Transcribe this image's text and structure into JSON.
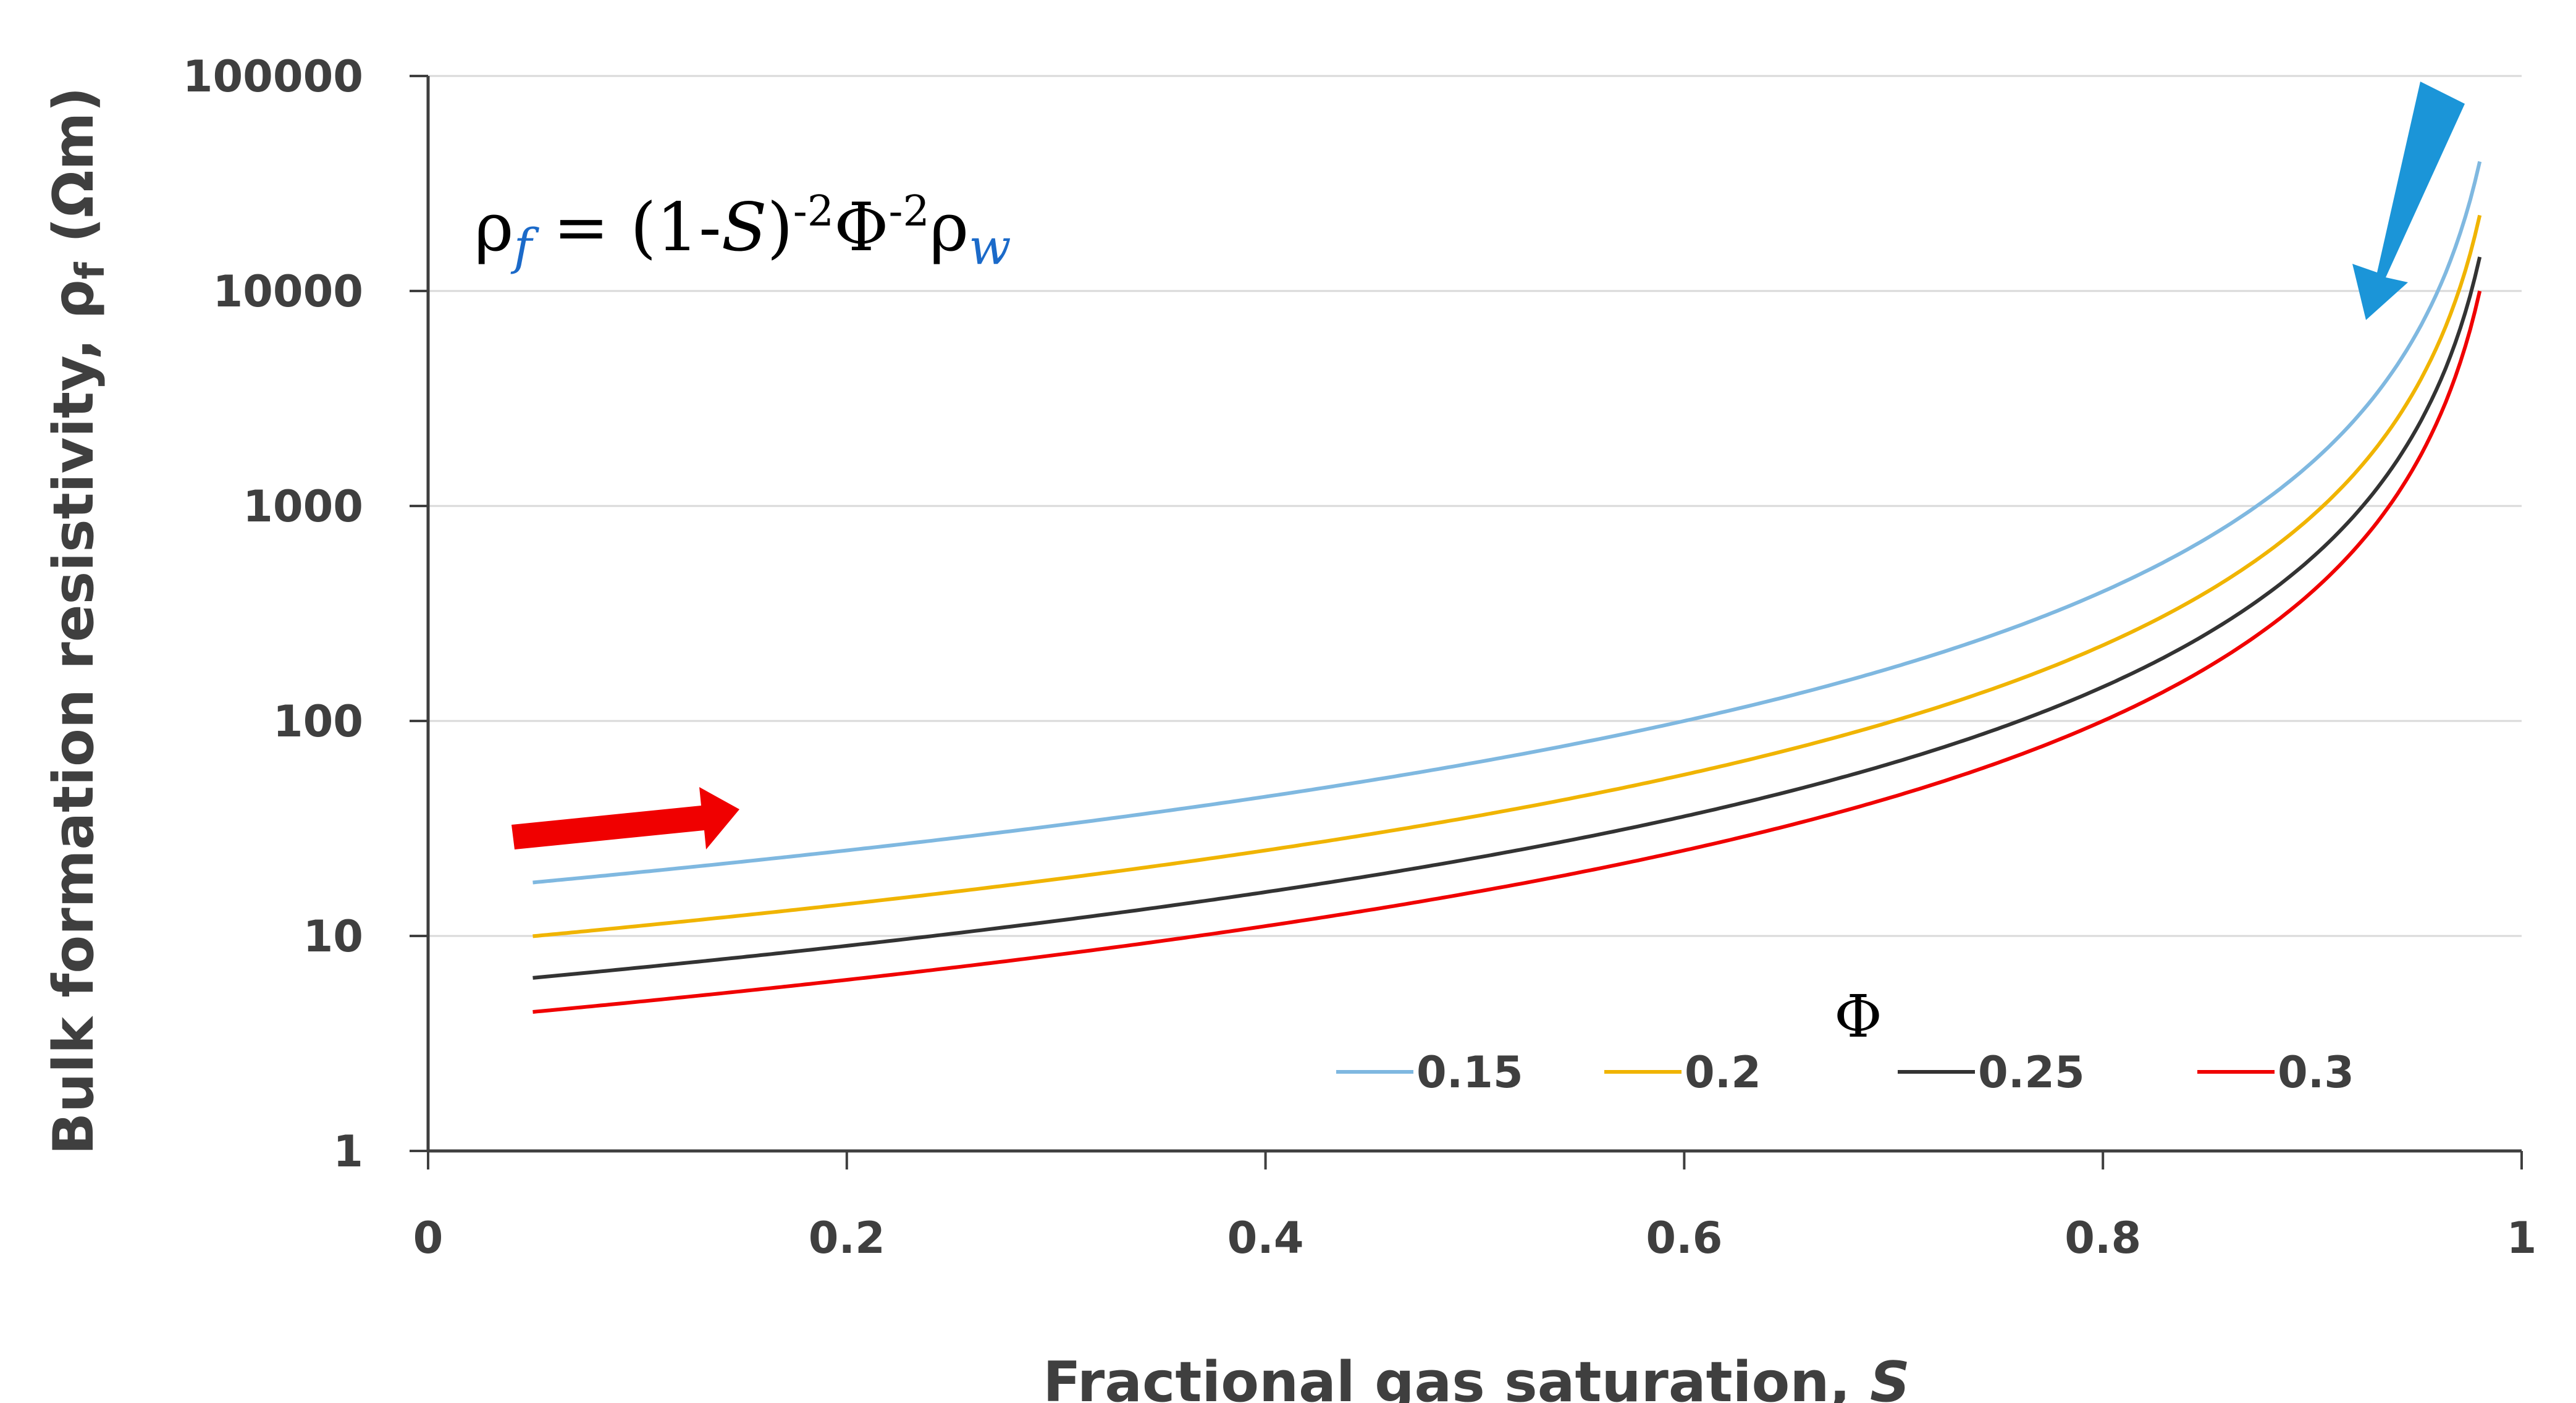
{
  "chart_data": {
    "type": "line",
    "title": "",
    "xlabel": "Fractional gas saturation, ",
    "xlabel_var": "S",
    "ylabel_main": "Bulk formation resistivity, ",
    "ylabel_symbol": "ρ",
    "ylabel_sub": "f",
    "ylabel_unit": " (Ωm)",
    "x_range": [
      0,
      1
    ],
    "y_range": [
      1,
      100000
    ],
    "y_scale": "log",
    "x_ticks": [
      0,
      0.2,
      0.4,
      0.6,
      0.8,
      1
    ],
    "x_tick_labels": [
      "0",
      "0.2",
      "0.4",
      "0.6",
      "0.8",
      "1"
    ],
    "y_ticks": [
      1,
      10,
      100,
      1000,
      10000,
      100000
    ],
    "y_tick_labels": [
      "1",
      "10",
      "100",
      "1000",
      "10000",
      "100000"
    ],
    "grid": "horizontal",
    "equation": {
      "rho": "ρ",
      "f": "f",
      "eq": " = (1-",
      "S": "S",
      "close": ")",
      "exp1": "-2",
      "phi": "Φ",
      "exp2": "-2",
      "rho2": "ρ",
      "w": "w"
    },
    "legend_title": "Φ",
    "legend_position": "bottom-right",
    "rho_w": 0.36,
    "s_min": 0.05,
    "s_max": 0.98,
    "series": [
      {
        "name": "0.15",
        "phi": 0.15,
        "color": "#7fb8e0"
      },
      {
        "name": "0.2",
        "phi": 0.2,
        "color": "#f0b400"
      },
      {
        "name": "0.25",
        "phi": 0.25,
        "color": "#333333"
      },
      {
        "name": "0.3",
        "phi": 0.3,
        "color": "#f00000"
      }
    ],
    "annotations": [
      {
        "name": "red-arrow",
        "color": "#f00000",
        "direction": "right"
      },
      {
        "name": "blue-arrow",
        "color": "#1b95d8",
        "direction": "down-left"
      }
    ]
  }
}
